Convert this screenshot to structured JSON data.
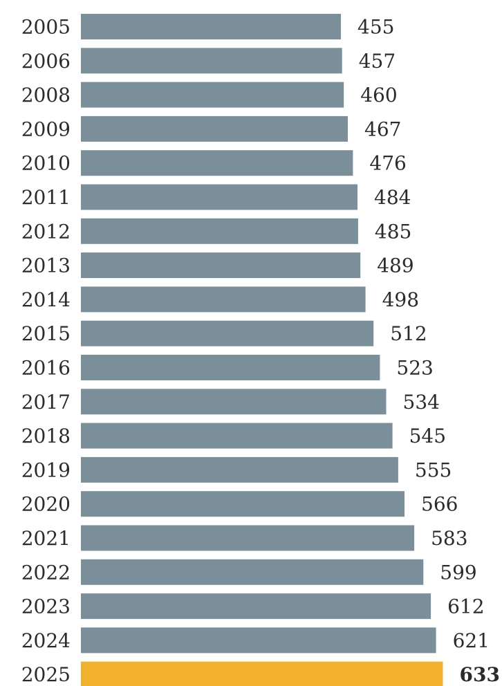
{
  "chart_data": {
    "type": "bar",
    "orientation": "horizontal",
    "categories": [
      "2005",
      "2006",
      "2008",
      "2009",
      "2010",
      "2011",
      "2012",
      "2013",
      "2014",
      "2015",
      "2016",
      "2017",
      "2018",
      "2019",
      "2020",
      "2021",
      "2022",
      "2023",
      "2024",
      "2025"
    ],
    "values": [
      455,
      457,
      460,
      467,
      476,
      484,
      485,
      489,
      498,
      512,
      523,
      534,
      545,
      555,
      566,
      583,
      599,
      612,
      621,
      633
    ],
    "highlight_category": "2025",
    "colors": {
      "bar": "#7b8f9a",
      "highlight": "#f2b12c"
    },
    "grid": false,
    "legend": "none"
  }
}
